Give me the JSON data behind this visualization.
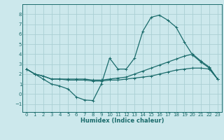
{
  "xlabel": "Humidex (Indice chaleur)",
  "bg_color": "#cce8ec",
  "grid_color": "#aacfd4",
  "line_color": "#1a6b6b",
  "xlim": [
    -0.5,
    23.5
  ],
  "ylim": [
    -1.8,
    9.0
  ],
  "xticks": [
    0,
    1,
    2,
    3,
    4,
    5,
    6,
    7,
    8,
    9,
    10,
    11,
    12,
    13,
    14,
    15,
    16,
    17,
    18,
    19,
    20,
    21,
    22,
    23
  ],
  "yticks": [
    -1,
    0,
    1,
    2,
    3,
    4,
    5,
    6,
    7,
    8
  ],
  "line1_x": [
    0,
    1,
    2,
    3,
    4,
    5,
    6,
    7,
    8,
    9,
    10,
    11,
    12,
    13,
    14,
    15,
    16,
    17,
    18,
    19,
    20,
    21,
    22,
    23
  ],
  "line1_y": [
    2.5,
    2.0,
    1.5,
    1.0,
    0.8,
    0.5,
    -0.3,
    -0.6,
    -0.65,
    1.0,
    3.6,
    2.5,
    2.5,
    3.6,
    6.3,
    7.7,
    7.9,
    7.4,
    6.7,
    5.2,
    3.9,
    3.2,
    2.6,
    1.5
  ],
  "line2_x": [
    0,
    1,
    2,
    3,
    4,
    5,
    6,
    7,
    8,
    9,
    10,
    11,
    12,
    13,
    14,
    15,
    16,
    17,
    18,
    19,
    20,
    21,
    22,
    23
  ],
  "line2_y": [
    2.5,
    2.0,
    1.8,
    1.5,
    1.5,
    1.5,
    1.5,
    1.5,
    1.4,
    1.4,
    1.5,
    1.6,
    1.7,
    2.0,
    2.3,
    2.6,
    2.9,
    3.2,
    3.5,
    3.8,
    4.0,
    3.3,
    2.7,
    1.5
  ],
  "line3_x": [
    0,
    1,
    2,
    3,
    4,
    5,
    6,
    7,
    8,
    9,
    10,
    11,
    12,
    13,
    14,
    15,
    16,
    17,
    18,
    19,
    20,
    21,
    22,
    23
  ],
  "line3_y": [
    2.5,
    2.0,
    1.8,
    1.5,
    1.5,
    1.4,
    1.4,
    1.4,
    1.3,
    1.3,
    1.4,
    1.4,
    1.5,
    1.6,
    1.7,
    1.8,
    2.0,
    2.2,
    2.4,
    2.5,
    2.6,
    2.6,
    2.5,
    1.5
  ],
  "tick_fontsize": 5.0,
  "xlabel_fontsize": 6.0
}
